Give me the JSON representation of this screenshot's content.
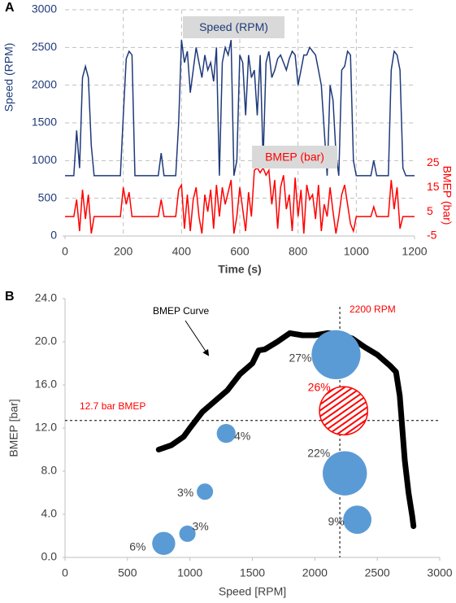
{
  "chart_data": [
    {
      "type": "line",
      "panel_label": "A",
      "xlabel": "Time (s)",
      "ylabel": "Speed (RPM)",
      "y2label": "BMEP (bar)",
      "x": [
        0,
        10,
        20,
        30,
        40,
        50,
        60,
        70,
        80,
        90,
        100,
        110,
        120,
        130,
        140,
        150,
        160,
        170,
        180,
        190,
        200,
        210,
        220,
        230,
        240,
        250,
        260,
        270,
        280,
        290,
        300,
        310,
        320,
        330,
        340,
        350,
        360,
        370,
        380,
        390,
        400,
        410,
        420,
        430,
        440,
        450,
        460,
        470,
        480,
        490,
        500,
        510,
        520,
        530,
        540,
        550,
        560,
        570,
        580,
        590,
        600,
        610,
        620,
        630,
        640,
        650,
        660,
        670,
        680,
        690,
        700,
        710,
        720,
        730,
        740,
        750,
        760,
        770,
        780,
        790,
        800,
        810,
        820,
        830,
        840,
        850,
        860,
        870,
        880,
        890,
        900,
        910,
        920,
        930,
        940,
        950,
        960,
        970,
        980,
        990,
        1000,
        1010,
        1020,
        1030,
        1040,
        1050,
        1060,
        1070,
        1080,
        1090,
        1100,
        1110,
        1120,
        1130,
        1140,
        1150,
        1160,
        1170,
        1180,
        1190,
        1200
      ],
      "series": [
        {
          "name": "Speed (RPM)",
          "color": "#1f3a7a",
          "values": [
            800,
            800,
            800,
            800,
            1400,
            900,
            2100,
            2250,
            2100,
            1200,
            800,
            800,
            800,
            800,
            800,
            800,
            800,
            800,
            800,
            800,
            1600,
            2350,
            2450,
            2400,
            800,
            800,
            800,
            800,
            800,
            800,
            800,
            800,
            800,
            1100,
            800,
            800,
            800,
            800,
            800,
            1500,
            2600,
            2300,
            2450,
            1900,
            2200,
            2500,
            2300,
            2100,
            2400,
            2200,
            2300,
            2050,
            2500,
            800,
            2300,
            2500,
            2400,
            2600,
            800,
            1000,
            2400,
            2300,
            1600,
            2400,
            2100,
            2200,
            1600,
            2400,
            1000,
            2300,
            2450,
            2100,
            2200,
            2350,
            2400,
            2300,
            2200,
            2350,
            2450,
            2400,
            2000,
            2200,
            2400,
            2400,
            2500,
            2450,
            2400,
            2200,
            2000,
            1400,
            800,
            2000,
            1800,
            1100,
            800,
            2200,
            2250,
            2450,
            2400,
            1000,
            800,
            800,
            800,
            800,
            800,
            800,
            1000,
            800,
            800,
            800,
            800,
            800,
            2200,
            2450,
            2400,
            2200,
            900,
            800,
            800,
            800,
            800
          ]
        },
        {
          "name": "BMEP (bar)",
          "color": "#ff0000",
          "axis": "y2",
          "values": [
            3,
            3,
            3,
            3,
            10,
            -3,
            14,
            2,
            12,
            -4,
            3,
            3,
            3,
            3,
            3,
            3,
            3,
            3,
            3,
            3,
            15,
            8,
            13,
            3,
            3,
            3,
            3,
            3,
            3,
            3,
            3,
            3,
            3,
            10,
            3,
            3,
            3,
            3,
            3,
            14,
            16,
            -2,
            12,
            -3,
            10,
            15,
            3,
            -4,
            12,
            5,
            14,
            -2,
            16,
            3,
            15,
            8,
            13,
            18,
            -4,
            3,
            15,
            6,
            -3,
            13,
            3,
            22,
            23,
            21,
            23,
            20,
            22,
            8,
            18,
            -2,
            15,
            20,
            6,
            12,
            -3,
            19,
            3,
            14,
            -4,
            16,
            10,
            12,
            2,
            16,
            -3,
            8,
            3,
            15,
            5,
            -4,
            3,
            12,
            16,
            8,
            0,
            -3,
            3,
            3,
            3,
            3,
            3,
            3,
            7,
            3,
            3,
            3,
            3,
            3,
            18,
            6,
            15,
            -2,
            3,
            3,
            3,
            3,
            3
          ]
        }
      ],
      "xlim": [
        0,
        1200
      ],
      "xticks": [
        0,
        200,
        400,
        600,
        800,
        1000,
        1200
      ],
      "ylim": [
        0,
        3000
      ],
      "yticks": [
        0,
        500,
        1000,
        1500,
        2000,
        2500,
        3000
      ],
      "y2lim": [
        -5,
        88
      ],
      "y2ticks": [
        -5,
        5,
        15,
        25
      ],
      "grid": true
    },
    {
      "type": "bubble",
      "panel_label": "B",
      "xlabel": "Speed [RPM]",
      "ylabel": "BMEP [bar]",
      "curve": {
        "x": [
          750,
          850,
          950,
          1000,
          1100,
          1200,
          1300,
          1400,
          1500,
          1550,
          1600,
          1700,
          1800,
          1900,
          2000,
          2100,
          2200,
          2300,
          2400,
          2500,
          2600,
          2650,
          2680,
          2700,
          2720,
          2750,
          2780,
          2790
        ],
        "y": [
          10,
          10.4,
          11.2,
          12,
          13.5,
          14.5,
          15.5,
          17,
          18,
          19.2,
          19.3,
          20,
          20.8,
          20.6,
          20.6,
          20.8,
          20.7,
          20.3,
          19.5,
          18.8,
          17.8,
          17.2,
          15,
          12,
          9,
          6,
          3.8,
          2.9
        ],
        "color": "#000000"
      },
      "points": {
        "x": [
          2170,
          2230,
          2240,
          2340,
          1290,
          1120,
          980,
          790
        ],
        "y": [
          18.8,
          13.6,
          7.8,
          3.5,
          11.5,
          6.1,
          2.2,
          1.3
        ],
        "sizes": [
          27,
          26,
          22,
          9,
          4,
          3,
          3,
          6
        ],
        "value_labels": [
          "27%",
          "26%",
          "22%",
          "9%",
          "4%",
          "3%",
          "3%",
          "6%"
        ],
        "colors": [
          "#5b9bd5",
          "#ff0000",
          "#5b9bd5",
          "#5b9bd5",
          "#5b9bd5",
          "#5b9bd5",
          "#5b9bd5",
          "#5b9bd5"
        ],
        "hatched": [
          false,
          true,
          false,
          false,
          false,
          false,
          false,
          false
        ]
      },
      "reference_lines": {
        "x": 2200,
        "y": 12.7
      },
      "annotations": [
        "BMEP Curve",
        "2200 RPM",
        "12.7 bar BMEP"
      ],
      "xlim": [
        0,
        3000
      ],
      "xticks": [
        0,
        500,
        1000,
        1500,
        2000,
        2500,
        3000
      ],
      "ylim": [
        0,
        24
      ],
      "yticks": [
        {
          "value": 0,
          "label": "0.0"
        },
        {
          "value": 4,
          "label": "4.0"
        },
        {
          "value": 8,
          "label": "8.0"
        },
        {
          "value": 12,
          "label": "12.0"
        },
        {
          "value": 16,
          "label": "16.0"
        },
        {
          "value": 20,
          "label": "20.0"
        },
        {
          "value": 24,
          "label": "24.0"
        }
      ]
    }
  ]
}
